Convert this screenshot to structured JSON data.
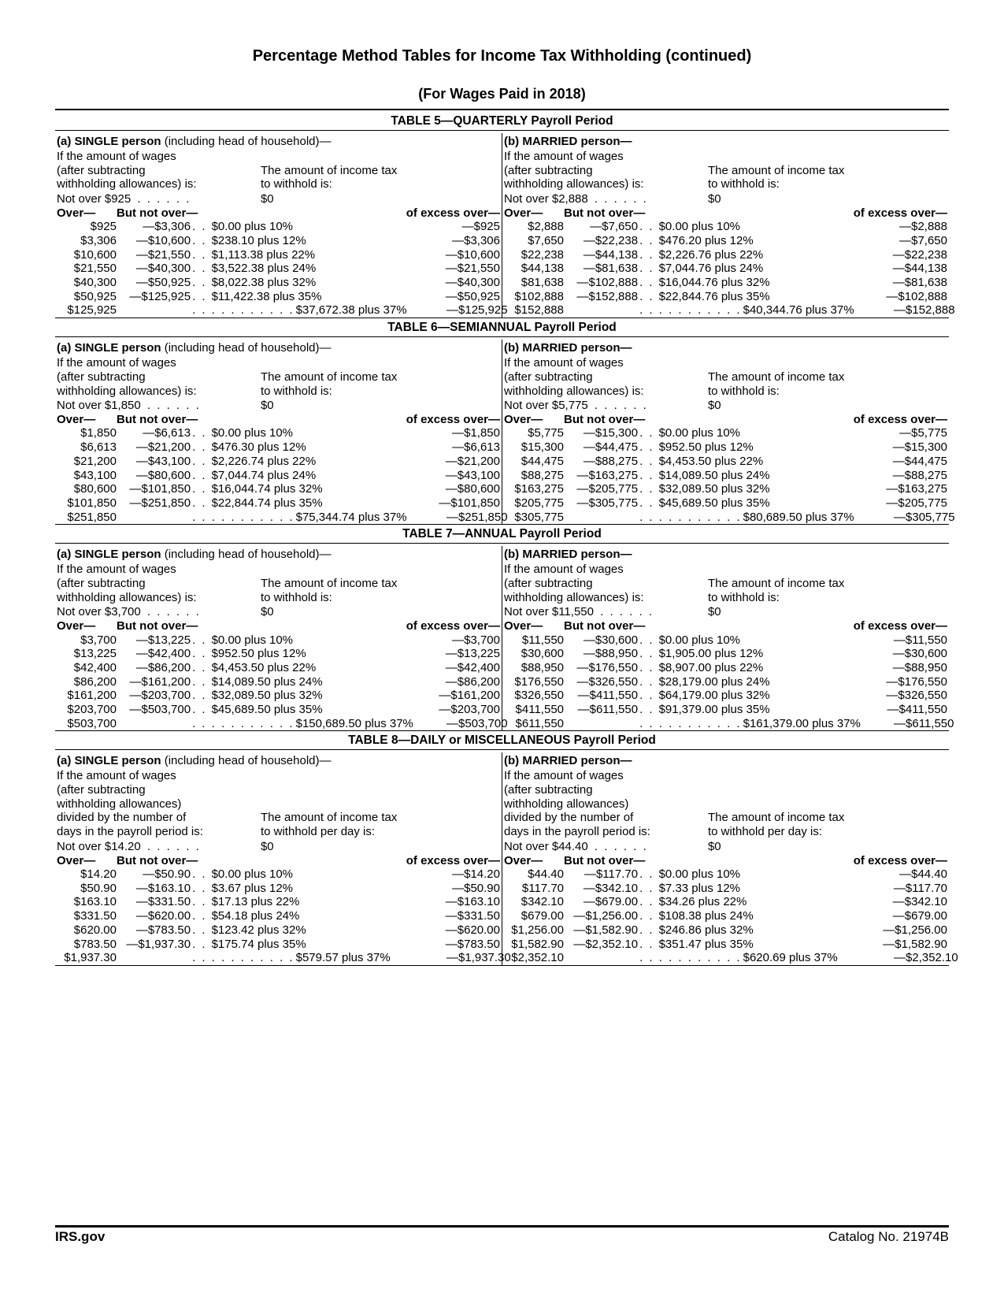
{
  "page": {
    "title": "Percentage Method Tables for Income Tax Withholding (continued)",
    "subtitle": "(For Wages Paid in 2018)",
    "footer_left": "IRS.gov",
    "footer_right": "Catalog No. 21974B"
  },
  "labels": {
    "single_status": "(a) SINGLE person (including head of household)—",
    "married_status": "(b) MARRIED person—",
    "intro_left": "If the amount of wages (after subtracting withholding allowances) is:",
    "intro_right": "The amount of income tax to withhold is:",
    "intro_left_daily": "If the amount of wages (after subtracting withholding allowances) divided by the number of days in the payroll period is:",
    "intro_right_daily": "The amount of income tax to withhold per day is:",
    "over": "Over—",
    "but_not_over": "But not over—",
    "excess_over": "of excess over—",
    "zero": "$0",
    "dots6": ". . . . . .",
    "dots5": ". . . . .",
    "dd": ". .",
    "ddlong": ". . . . . . . . . . ."
  },
  "tables": [
    {
      "heading": "TABLE 5—QUARTERLY Payroll Period",
      "single": {
        "not_over": "Not over $925",
        "rows": [
          {
            "over": "$925",
            "butnot": "—$3,306",
            "tax": "$0.00 plus 10%",
            "excess": "—$925"
          },
          {
            "over": "$3,306",
            "butnot": "—$10,600",
            "tax": "$238.10 plus 12%",
            "excess": "—$3,306"
          },
          {
            "over": "$10,600",
            "butnot": "—$21,550",
            "tax": "$1,113.38 plus 22%",
            "excess": "—$10,600"
          },
          {
            "over": "$21,550",
            "butnot": "—$40,300",
            "tax": "$3,522.38 plus 24%",
            "excess": "—$21,550"
          },
          {
            "over": "$40,300",
            "butnot": "—$50,925",
            "tax": "$8,022.38 plus 32%",
            "excess": "—$40,300"
          },
          {
            "over": "$50,925",
            "butnot": "—$125,925",
            "tax": "$11,422.38 plus 35%",
            "excess": "—$50,925"
          },
          {
            "over": "$125,925",
            "butnot": "",
            "tax": "$37,672.38 plus 37%",
            "excess": "—$125,925"
          }
        ]
      },
      "married": {
        "not_over": "Not over $2,888",
        "rows": [
          {
            "over": "$2,888",
            "butnot": "—$7,650",
            "tax": "$0.00 plus 10%",
            "excess": "—$2,888"
          },
          {
            "over": "$7,650",
            "butnot": "—$22,238",
            "tax": "$476.20 plus 12%",
            "excess": "—$7,650"
          },
          {
            "over": "$22,238",
            "butnot": "—$44,138",
            "tax": "$2,226.76 plus 22%",
            "excess": "—$22,238"
          },
          {
            "over": "$44,138",
            "butnot": "—$81,638",
            "tax": "$7,044.76 plus 24%",
            "excess": "—$44,138"
          },
          {
            "over": "$81,638",
            "butnot": "—$102,888",
            "tax": "$16,044.76 plus 32%",
            "excess": "—$81,638"
          },
          {
            "over": "$102,888",
            "butnot": "—$152,888",
            "tax": "$22,844.76 plus 35%",
            "excess": "—$102,888"
          },
          {
            "over": "$152,888",
            "butnot": "",
            "tax": "$40,344.76 plus 37%",
            "excess": "—$152,888"
          }
        ]
      }
    },
    {
      "heading": "TABLE 6—SEMIANNUAL Payroll Period",
      "single": {
        "not_over": "Not over $1,850",
        "rows": [
          {
            "over": "$1,850",
            "butnot": "—$6,613",
            "tax": "$0.00 plus 10%",
            "excess": "—$1,850"
          },
          {
            "over": "$6,613",
            "butnot": "—$21,200",
            "tax": "$476.30 plus 12%",
            "excess": "—$6,613"
          },
          {
            "over": "$21,200",
            "butnot": "—$43,100",
            "tax": "$2,226.74 plus 22%",
            "excess": "—$21,200"
          },
          {
            "over": "$43,100",
            "butnot": "—$80,600",
            "tax": "$7,044.74 plus 24%",
            "excess": "—$43,100"
          },
          {
            "over": "$80,600",
            "butnot": "—$101,850",
            "tax": "$16,044.74 plus 32%",
            "excess": "—$80,600"
          },
          {
            "over": "$101,850",
            "butnot": "—$251,850",
            "tax": "$22,844.74 plus 35%",
            "excess": "—$101,850"
          },
          {
            "over": "$251,850",
            "butnot": "",
            "tax": "$75,344.74 plus 37%",
            "excess": "—$251,850"
          }
        ]
      },
      "married": {
        "not_over": "Not over $5,775",
        "rows": [
          {
            "over": "$5,775",
            "butnot": "—$15,300",
            "tax": "$0.00 plus 10%",
            "excess": "—$5,775"
          },
          {
            "over": "$15,300",
            "butnot": "—$44,475",
            "tax": "$952.50 plus 12%",
            "excess": "—$15,300"
          },
          {
            "over": "$44,475",
            "butnot": "—$88,275",
            "tax": "$4,453.50 plus 22%",
            "excess": "—$44,475"
          },
          {
            "over": "$88,275",
            "butnot": "—$163,275",
            "tax": "$14,089.50 plus 24%",
            "excess": "—$88,275"
          },
          {
            "over": "$163,275",
            "butnot": "—$205,775",
            "tax": "$32,089.50 plus 32%",
            "excess": "—$163,275"
          },
          {
            "over": "$205,775",
            "butnot": "—$305,775",
            "tax": "$45,689.50 plus 35%",
            "excess": "—$205,775"
          },
          {
            "over": "$305,775",
            "butnot": "",
            "tax": "$80,689.50 plus 37%",
            "excess": "—$305,775"
          }
        ]
      }
    },
    {
      "heading": "TABLE 7—ANNUAL Payroll Period",
      "single": {
        "not_over": "Not over $3,700",
        "rows": [
          {
            "over": "$3,700",
            "butnot": "—$13,225",
            "tax": "$0.00 plus 10%",
            "excess": "—$3,700"
          },
          {
            "over": "$13,225",
            "butnot": "—$42,400",
            "tax": "$952.50 plus 12%",
            "excess": "—$13,225"
          },
          {
            "over": "$42,400",
            "butnot": "—$86,200",
            "tax": "$4,453.50 plus 22%",
            "excess": "—$42,400"
          },
          {
            "over": "$86,200",
            "butnot": "—$161,200",
            "tax": "$14,089.50 plus 24%",
            "excess": "—$86,200"
          },
          {
            "over": "$161,200",
            "butnot": "—$203,700",
            "tax": "$32,089.50 plus 32%",
            "excess": "—$161,200"
          },
          {
            "over": "$203,700",
            "butnot": "—$503,700",
            "tax": "$45,689.50 plus 35%",
            "excess": "—$203,700"
          },
          {
            "over": "$503,700",
            "butnot": "",
            "tax": "$150,689.50 plus 37%",
            "excess": "—$503,700"
          }
        ]
      },
      "married": {
        "not_over": "Not over $11,550",
        "rows": [
          {
            "over": "$11,550",
            "butnot": "—$30,600",
            "tax": "$0.00 plus 10%",
            "excess": "—$11,550"
          },
          {
            "over": "$30,600",
            "butnot": "—$88,950",
            "tax": "$1,905.00 plus 12%",
            "excess": "—$30,600"
          },
          {
            "over": "$88,950",
            "butnot": "—$176,550",
            "tax": "$8,907.00 plus 22%",
            "excess": "—$88,950"
          },
          {
            "over": "$176,550",
            "butnot": "—$326,550",
            "tax": "$28,179.00 plus 24%",
            "excess": "—$176,550"
          },
          {
            "over": "$326,550",
            "butnot": "—$411,550",
            "tax": "$64,179.00 plus 32%",
            "excess": "—$326,550"
          },
          {
            "over": "$411,550",
            "butnot": "—$611,550",
            "tax": "$91,379.00 plus 35%",
            "excess": "—$411,550"
          },
          {
            "over": "$611,550",
            "butnot": "",
            "tax": "$161,379.00 plus 37%",
            "excess": "—$611,550"
          }
        ]
      }
    },
    {
      "heading": "TABLE 8—DAILY or MISCELLANEOUS Payroll Period",
      "daily": true,
      "single": {
        "not_over": "Not over $14.20",
        "rows": [
          {
            "over": "$14.20",
            "butnot": "—$50.90",
            "tax": "$0.00 plus 10%",
            "excess": "—$14.20"
          },
          {
            "over": "$50.90",
            "butnot": "—$163.10",
            "tax": "$3.67 plus 12%",
            "excess": "—$50.90"
          },
          {
            "over": "$163.10",
            "butnot": "—$331.50",
            "tax": "$17.13 plus 22%",
            "excess": "—$163.10"
          },
          {
            "over": "$331.50",
            "butnot": "—$620.00",
            "tax": "$54.18 plus 24%",
            "excess": "—$331.50"
          },
          {
            "over": "$620.00",
            "butnot": "—$783.50",
            "tax": "$123.42 plus 32%",
            "excess": "—$620.00"
          },
          {
            "over": "$783.50",
            "butnot": "—$1,937.30",
            "tax": "$175.74 plus 35%",
            "excess": "—$783.50"
          },
          {
            "over": "$1,937.30",
            "butnot": "",
            "tax": "$579.57 plus 37%",
            "excess": "—$1,937.30"
          }
        ]
      },
      "married": {
        "not_over": "Not over $44.40",
        "rows": [
          {
            "over": "$44.40",
            "butnot": "—$117.70",
            "tax": "$0.00 plus 10%",
            "excess": "—$44.40"
          },
          {
            "over": "$117.70",
            "butnot": "—$342.10",
            "tax": "$7.33 plus 12%",
            "excess": "—$117.70"
          },
          {
            "over": "$342.10",
            "butnot": "—$679.00",
            "tax": "$34.26 plus 22%",
            "excess": "—$342.10"
          },
          {
            "over": "$679.00",
            "butnot": "—$1,256.00",
            "tax": "$108.38 plus 24%",
            "excess": "—$679.00"
          },
          {
            "over": "$1,256.00",
            "butnot": "—$1,582.90",
            "tax": "$246.86 plus 32%",
            "excess": "—$1,256.00"
          },
          {
            "over": "$1,582.90",
            "butnot": "—$2,352.10",
            "tax": "$351.47 plus 35%",
            "excess": "—$1,582.90"
          },
          {
            "over": "$2,352.10",
            "butnot": "",
            "tax": "$620.69 plus 37%",
            "excess": "—$2,352.10"
          }
        ]
      }
    }
  ]
}
